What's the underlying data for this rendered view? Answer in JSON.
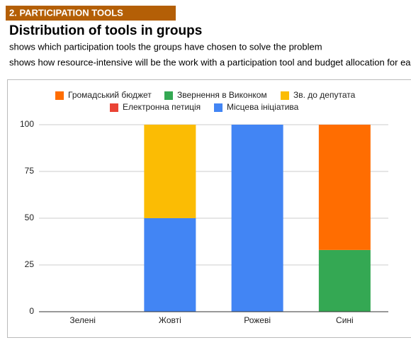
{
  "section_label": "2. PARTICIPATION TOOLS",
  "heading": "Distribution of tools in groups",
  "descriptions": [
    "shows which participation tools the groups have chosen to solve the problem",
    "shows how resource-intensive will be the work with a participation tool and budget allocation for each group"
  ],
  "chart_data": {
    "type": "stacked-bar",
    "categories": [
      "Зелені",
      "Жовті",
      "Рожеві",
      "Сині"
    ],
    "series": [
      {
        "name": "Громадський бюджет",
        "color": "#ff6d01",
        "values": [
          0,
          0,
          0,
          67
        ]
      },
      {
        "name": "Звернення в Виконком",
        "color": "#34a853",
        "values": [
          0,
          0,
          0,
          33
        ]
      },
      {
        "name": "Зв. до депутата",
        "color": "#fbbc04",
        "values": [
          0,
          50,
          0,
          0
        ]
      },
      {
        "name": "Електронна петиція",
        "color": "#ea4335",
        "values": [
          0,
          0,
          0,
          0
        ]
      },
      {
        "name": "Місцева ініціатива",
        "color": "#4285f4",
        "values": [
          0,
          50,
          100,
          0
        ]
      }
    ],
    "ylim": [
      0,
      100
    ],
    "yticks": [
      0,
      25,
      50,
      75,
      100
    ],
    "grid": true,
    "legend": "top"
  }
}
